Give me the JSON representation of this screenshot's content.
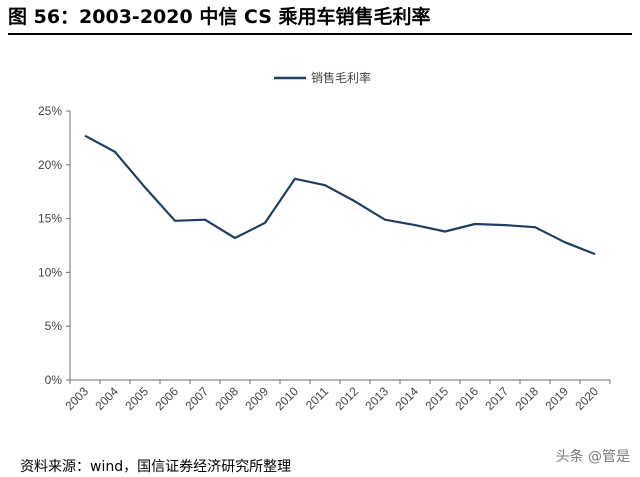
{
  "figure_title": "图 56：2003-2020 中信 CS 乘用车销售毛利率",
  "source_note": "资料来源：wind，国信证券经济研究所整理",
  "watermark": "头条 @管是",
  "colors": {
    "series": "#1f3e64",
    "axis": "#6f6f6f",
    "text": "#444444"
  },
  "chart_data": {
    "type": "line",
    "title": "",
    "xlabel": "",
    "ylabel": "",
    "legend_position": "top-center",
    "grid": false,
    "x": [
      "2003",
      "2004",
      "2005",
      "2006",
      "2007",
      "2008",
      "2009",
      "2010",
      "2011",
      "2012",
      "2013",
      "2014",
      "2015",
      "2016",
      "2017",
      "2018",
      "2019",
      "2020"
    ],
    "y_ticks": [
      "0%",
      "5%",
      "10%",
      "15%",
      "20%",
      "25%"
    ],
    "ylim": [
      0,
      25
    ],
    "series": [
      {
        "name": "销售毛利率",
        "values": [
          22.7,
          21.2,
          17.9,
          14.8,
          14.9,
          13.2,
          14.6,
          18.7,
          18.1,
          16.6,
          14.9,
          14.4,
          13.8,
          14.5,
          14.4,
          14.2,
          12.8,
          11.7
        ]
      }
    ]
  }
}
